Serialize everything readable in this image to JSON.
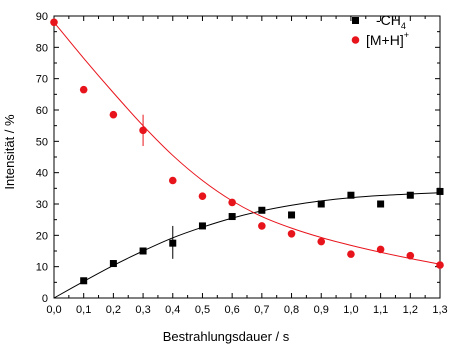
{
  "chart_data": {
    "type": "scatter",
    "xlabel": "Bestrahlungsdauer / s",
    "ylabel": "Intensität / %",
    "xlim": [
      0,
      1.3
    ],
    "ylim": [
      0,
      90
    ],
    "xticks": [
      "0,0",
      "0,1",
      "0,2",
      "0,3",
      "0,4",
      "0,5",
      "0,6",
      "0,7",
      "0,8",
      "0,9",
      "1,0",
      "1,1",
      "1,2",
      "1,3"
    ],
    "yticks": [
      "0",
      "10",
      "20",
      "30",
      "40",
      "50",
      "60",
      "70",
      "80",
      "90"
    ],
    "grid": false,
    "legend_position": "top-right",
    "series": [
      {
        "name": "-CH4",
        "legend_main": "-CH",
        "legend_sub": "4",
        "marker": "square",
        "color": "#000000",
        "fit_color": "#000000",
        "x": [
          0.1,
          0.2,
          0.3,
          0.4,
          0.5,
          0.6,
          0.7,
          0.8,
          0.9,
          1.0,
          1.1,
          1.2,
          1.3
        ],
        "y": [
          5.5,
          11,
          15,
          17.5,
          23,
          26,
          28,
          26.5,
          30,
          32.8,
          30,
          32.8,
          34
        ],
        "error_bars": [
          {
            "x": 0.4,
            "y": 17.5,
            "low": 12.5,
            "high": 23
          }
        ],
        "fit": {
          "x": [
            0,
            0.1,
            0.2,
            0.3,
            0.4,
            0.5,
            0.6,
            0.7,
            0.8,
            0.9,
            1.0,
            1.1,
            1.2,
            1.3
          ],
          "y": [
            0,
            5.3,
            10.4,
            15.0,
            19.2,
            22.6,
            25.5,
            27.8,
            29.6,
            31.0,
            32.0,
            32.7,
            33.2,
            33.6
          ]
        }
      },
      {
        "name": "[M+H]+",
        "legend_main": "[M+H]",
        "legend_sup": "+",
        "marker": "circle",
        "color": "#e8141c",
        "fit_color": "#e8141c",
        "x": [
          0.0,
          0.1,
          0.2,
          0.3,
          0.4,
          0.5,
          0.6,
          0.7,
          0.8,
          0.9,
          1.0,
          1.1,
          1.2,
          1.3
        ],
        "y": [
          88,
          66.5,
          58.5,
          53.5,
          37.5,
          32.5,
          30.5,
          23,
          20.5,
          18,
          14,
          15.5,
          13.5,
          10.5
        ],
        "error_bars": [
          {
            "x": 0.3,
            "y": 53.5,
            "low": 48.5,
            "high": 58.5
          }
        ],
        "fit": {
          "x": [
            0,
            0.1,
            0.2,
            0.3,
            0.4,
            0.5,
            0.6,
            0.7,
            0.8,
            0.9,
            1.0,
            1.1,
            1.2,
            1.3
          ],
          "y": [
            88,
            76.5,
            65.5,
            55,
            45.5,
            37.5,
            31,
            26,
            22.3,
            19.3,
            16.8,
            14.6,
            12.6,
            10.8
          ]
        }
      }
    ]
  }
}
